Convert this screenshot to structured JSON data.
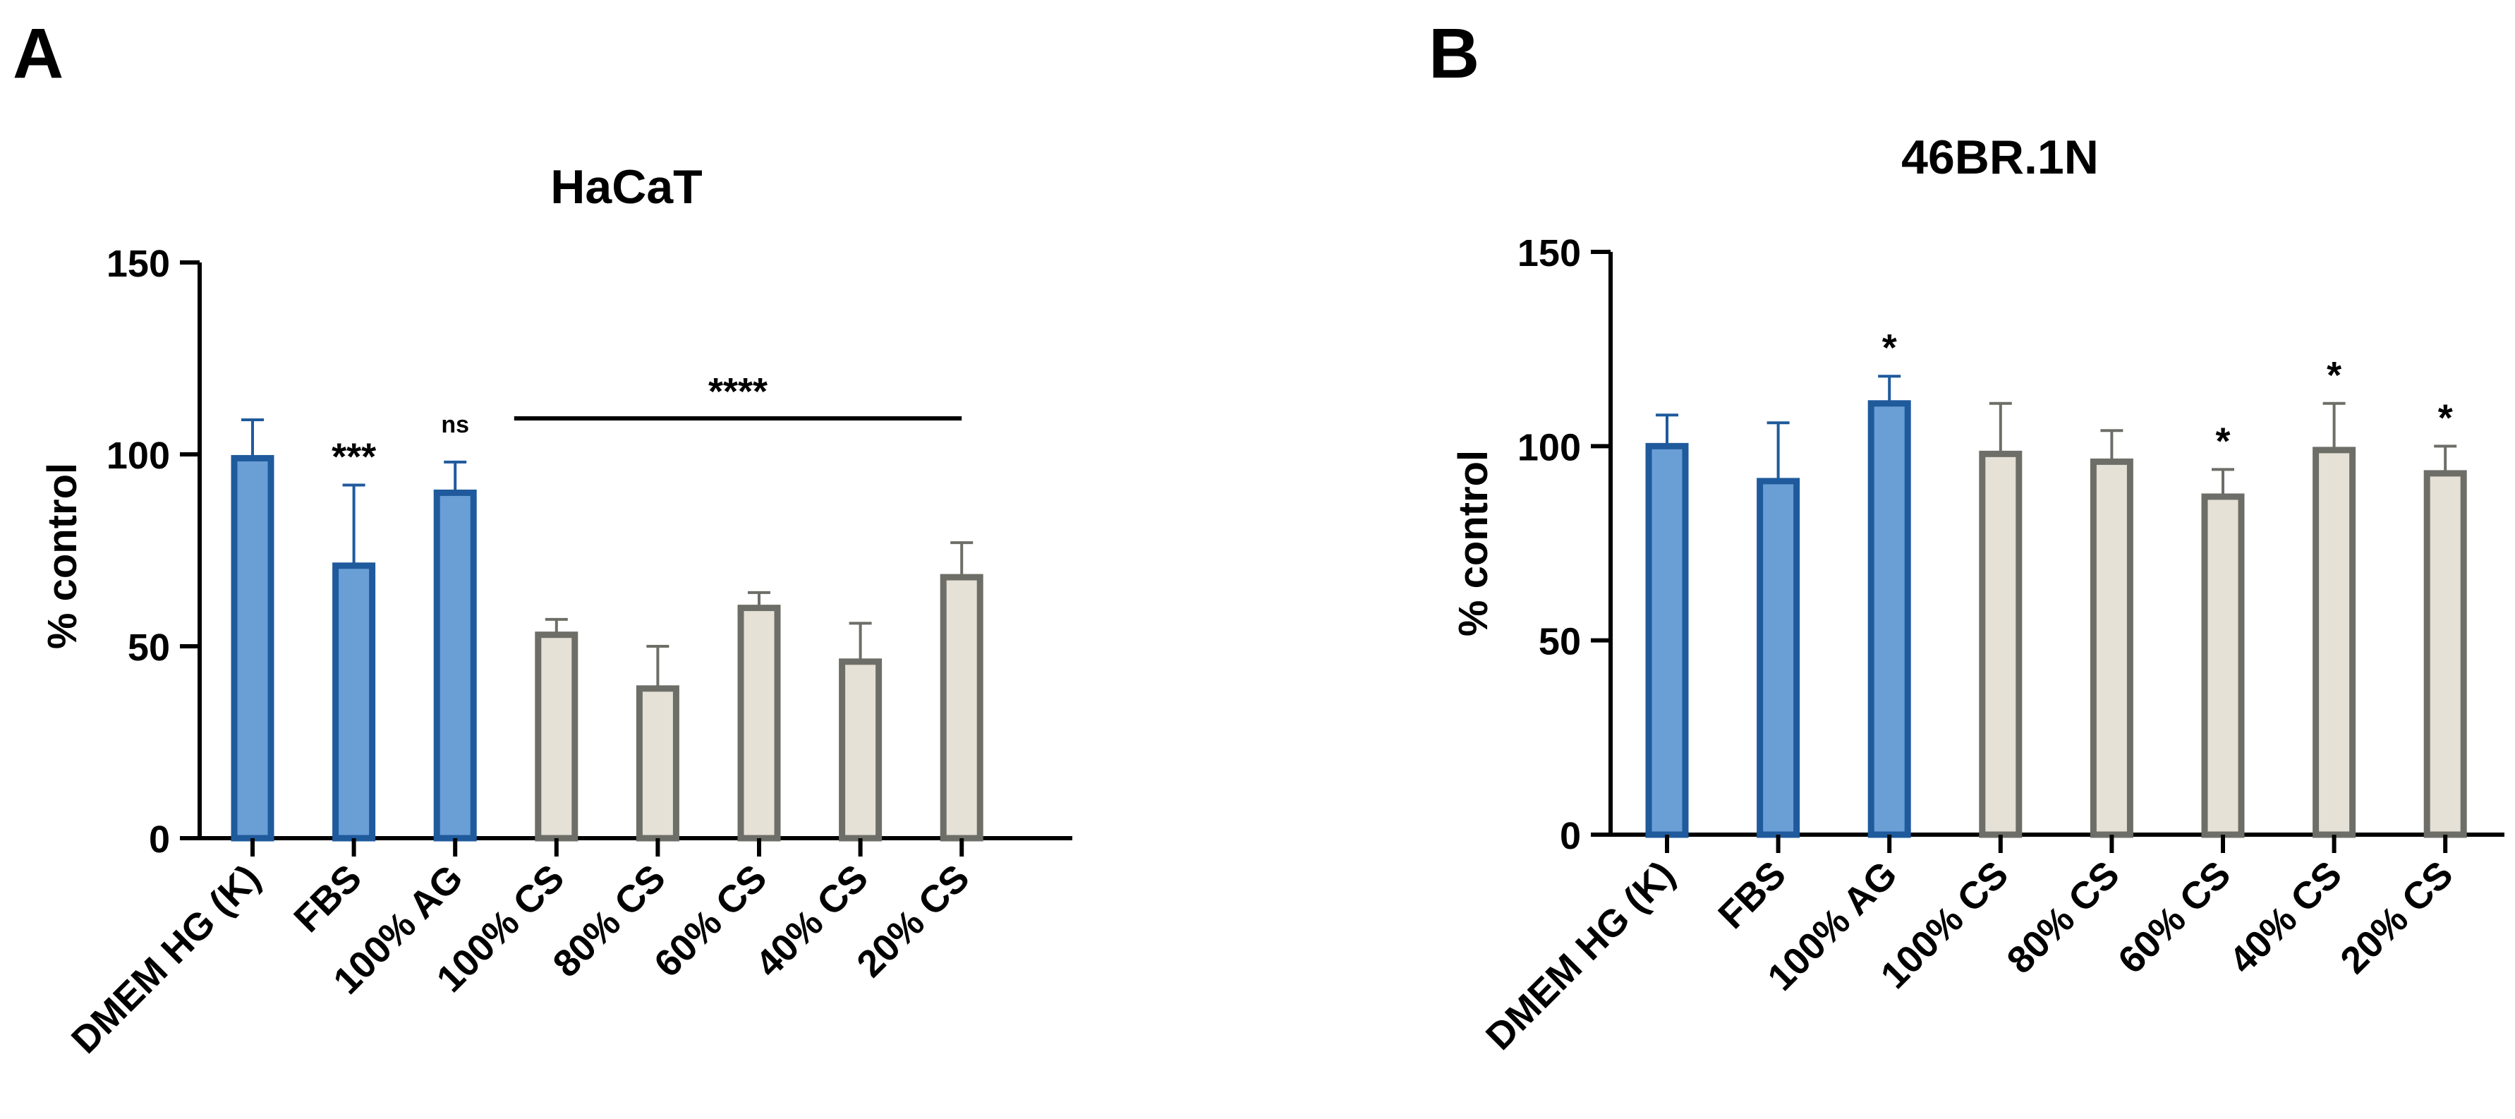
{
  "chart_data": [
    {
      "panel_label": "A",
      "type": "bar",
      "title": "HaCaT",
      "xlabel": "",
      "ylabel": "% control",
      "ylim": [
        0,
        150
      ],
      "yticks": [
        "0",
        "50",
        "100",
        "150"
      ],
      "categories": [
        "DMEM HG (K)",
        "FBS",
        "100% AG",
        "100% CS",
        "80% CS",
        "60% CS",
        "40% CS",
        "20% CS"
      ],
      "values": [
        99,
        71,
        90,
        53,
        39,
        60,
        46,
        68
      ],
      "errors": [
        10,
        21,
        8,
        4,
        11,
        4,
        10,
        9
      ],
      "groups": [
        "control",
        "control",
        "control",
        "cs",
        "cs",
        "cs",
        "cs",
        "cs"
      ],
      "annotations": [
        {
          "category": "FBS",
          "text": "***"
        },
        {
          "category": "100% AG",
          "text": "ns"
        },
        {
          "bracket_from": "100% CS",
          "bracket_to": "20% CS",
          "text": "****"
        }
      ]
    },
    {
      "panel_label": "B",
      "type": "bar",
      "title": "46BR.1N",
      "xlabel": "",
      "ylabel": "% control",
      "ylim": [
        0,
        150
      ],
      "yticks": [
        "0",
        "50",
        "100",
        "150"
      ],
      "categories": [
        "DMEM HG (K)",
        "FBS",
        "100% AG",
        "100% CS",
        "80% CS",
        "60% CS",
        "40% CS",
        "20% CS"
      ],
      "values": [
        100,
        91,
        111,
        98,
        96,
        87,
        99,
        93
      ],
      "errors": [
        8,
        15,
        7,
        13,
        8,
        7,
        12,
        7
      ],
      "groups": [
        "control",
        "control",
        "control",
        "cs",
        "cs",
        "cs",
        "cs",
        "cs"
      ],
      "annotations": [
        {
          "category": "100% AG",
          "text": "*"
        },
        {
          "category": "60% CS",
          "text": "*"
        },
        {
          "category": "40% CS",
          "text": "*"
        },
        {
          "category": "20% CS",
          "text": "*"
        }
      ]
    }
  ],
  "colors": {
    "control_fill": "#6a9fd6",
    "control_stroke": "#1f5a9c",
    "cs_fill": "#e5e1d6",
    "cs_stroke": "#6e6e68",
    "axis": "#000000"
  }
}
